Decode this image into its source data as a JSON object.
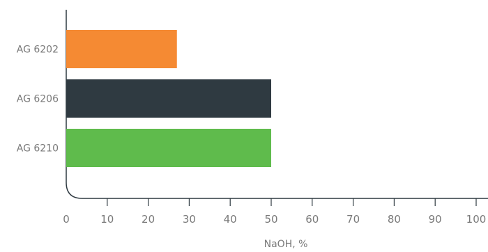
{
  "chart_data": {
    "type": "bar",
    "orientation": "horizontal",
    "categories": [
      "AG 6202",
      "AG 6206",
      "AG 6210"
    ],
    "values": [
      27,
      50,
      50
    ],
    "colors": [
      "#f58a33",
      "#2f3a41",
      "#5fbb4c"
    ],
    "xlabel": "NaOH, %",
    "ylabel": "",
    "title": "",
    "xlim": [
      0,
      100
    ],
    "xticks": [
      0,
      10,
      20,
      30,
      40,
      50,
      60,
      70,
      80,
      90,
      100
    ],
    "grid": false,
    "legend": "none"
  }
}
